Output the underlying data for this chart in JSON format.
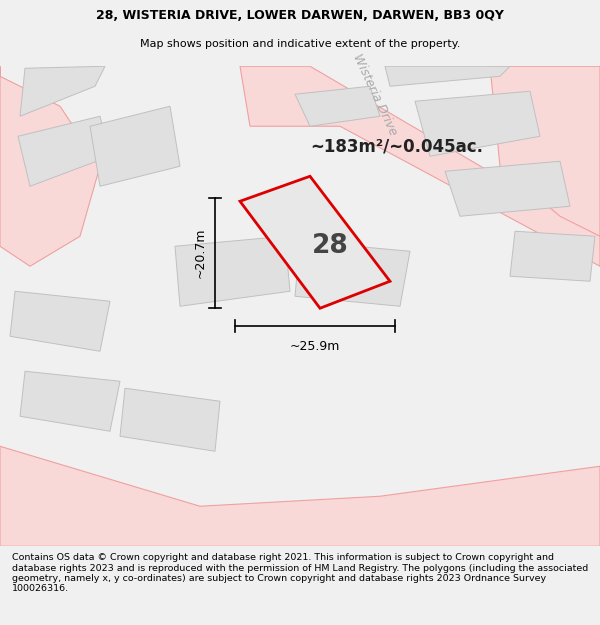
{
  "title_line1": "28, WISTERIA DRIVE, LOWER DARWEN, DARWEN, BB3 0QY",
  "title_line2": "Map shows position and indicative extent of the property.",
  "footer_text": "Contains OS data © Crown copyright and database right 2021. This information is subject to Crown copyright and database rights 2023 and is reproduced with the permission of HM Land Registry. The polygons (including the associated geometry, namely x, y co-ordinates) are subject to Crown copyright and database rights 2023 Ordnance Survey 100026316.",
  "area_label": "~183m²/~0.045ac.",
  "property_number": "28",
  "dim_width": "~25.9m",
  "dim_height": "~20.7m",
  "road_label": "Wisteria Drive",
  "bg_color": "#f0f0f0",
  "map_bg": "#ffffff",
  "road_color": "#f9d8d8",
  "road_stroke": "#f0a0a0",
  "property_fill": "#e8e8e8",
  "property_stroke": "#dd0000",
  "other_property_fill": "#e0e0e0",
  "other_property_stroke": "#c0c0c0",
  "road_outline": "#f0a0a0",
  "title_fontsize": 9.0,
  "footer_fontsize": 6.8
}
